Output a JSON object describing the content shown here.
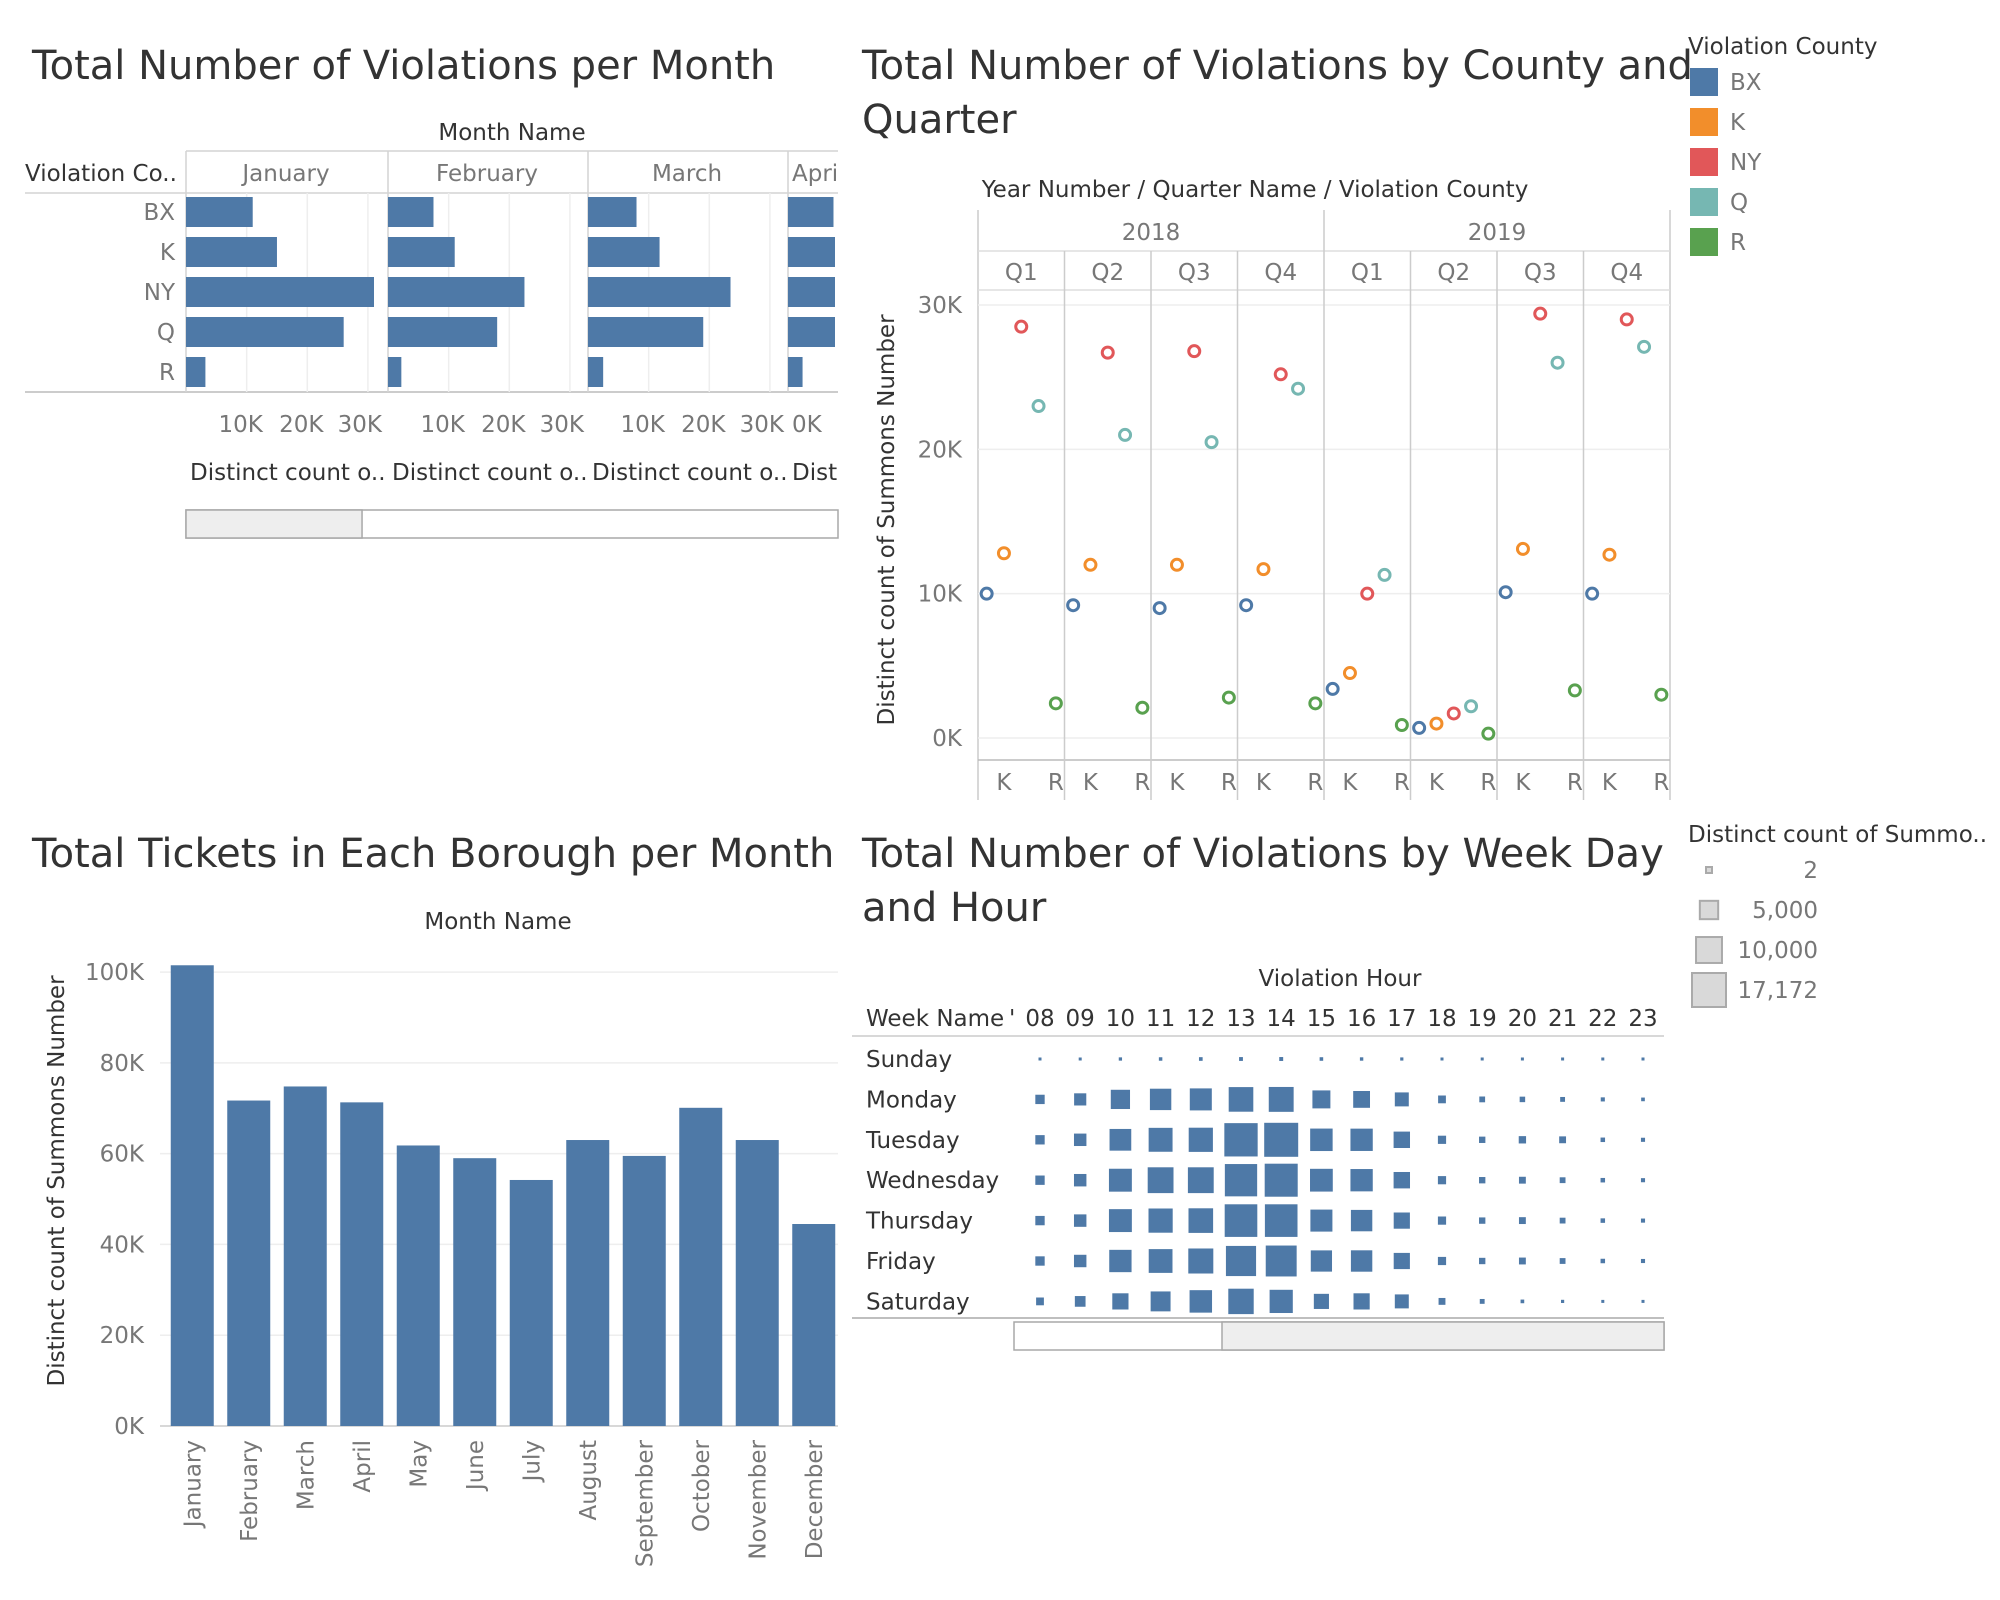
{
  "colors": {
    "bar": "#4e79a7",
    "BX": "#4e79a7",
    "K": "#f28e2b",
    "NY": "#e15759",
    "Q": "#76b7b2",
    "R": "#59a14f",
    "square_legend_fill": "#d9d9d9",
    "square_legend_stroke": "#aaaaaa"
  },
  "panel1": {
    "title": "Total Number of Violations per Month",
    "column_header": "Month Name",
    "row_header": "Violation Co..",
    "months_visible": [
      "January",
      "February",
      "March",
      "Apri"
    ],
    "measure_label": "Distinct count o..",
    "measure_label_cut": "Dist",
    "scroll_thumb_fraction": [
      0.0,
      0.27
    ],
    "chart_data": {
      "type": "bar",
      "orientation": "horizontal",
      "categories": [
        "BX",
        "K",
        "NY",
        "Q",
        "R"
      ],
      "x_ticks": [
        "10K",
        "20K",
        "30K"
      ],
      "x_ticks_last": [
        "0K"
      ],
      "xlim": [
        0,
        31000
      ],
      "series": [
        {
          "name": "January",
          "values": [
            11000,
            15000,
            31000,
            26000,
            3200
          ]
        },
        {
          "name": "February",
          "values": [
            7500,
            11000,
            22500,
            18000,
            2200
          ]
        },
        {
          "name": "March",
          "values": [
            8000,
            11800,
            23500,
            19000,
            2500
          ]
        },
        {
          "name": "Apri",
          "values": [
            7500,
            11000,
            22500,
            18000,
            2400
          ]
        }
      ]
    }
  },
  "panel2": {
    "title": "Total Number of Violations by County and Quarter",
    "column_header": "Year Number / Quarter Name / Violation County",
    "y_axis_label": "Distinct count of Summons Number",
    "legend_title": "Violation County",
    "chart_data": {
      "type": "scatter",
      "years": [
        "2018",
        "2019"
      ],
      "quarters": [
        "Q1",
        "Q2",
        "Q3",
        "Q4"
      ],
      "counties": [
        "BX",
        "K",
        "NY",
        "Q",
        "R"
      ],
      "axis_labels_visible": [
        "K",
        "R"
      ],
      "y_ticks": [
        "0K",
        "10K",
        "20K",
        "30K"
      ],
      "ylim": [
        0,
        32000
      ],
      "series": [
        {
          "name": "BX",
          "values": [
            10000,
            9200,
            9000,
            9200,
            3400,
            700,
            10100,
            10000
          ]
        },
        {
          "name": "K",
          "values": [
            12800,
            12000,
            12000,
            11700,
            4500,
            1000,
            13100,
            12700
          ]
        },
        {
          "name": "NY",
          "values": [
            28500,
            26700,
            26800,
            25200,
            10000,
            1700,
            29400,
            29000
          ]
        },
        {
          "name": "Q",
          "values": [
            23000,
            21000,
            20500,
            24200,
            11300,
            2200,
            26000,
            27100
          ]
        },
        {
          "name": "R",
          "values": [
            2400,
            2100,
            2800,
            2400,
            900,
            300,
            3300,
            3000
          ]
        }
      ]
    }
  },
  "panel3": {
    "title": "Total Tickets in Each Borough per Month",
    "column_header": "Month Name",
    "y_axis_label": "Distinct count of Summons Number",
    "chart_data": {
      "type": "bar",
      "categories": [
        "January",
        "February",
        "March",
        "April",
        "May",
        "June",
        "July",
        "August",
        "September",
        "October",
        "November",
        "December"
      ],
      "values": [
        101500,
        71700,
        74800,
        71300,
        61800,
        59000,
        54200,
        63000,
        59500,
        70100,
        63000,
        44500
      ],
      "y_ticks": [
        "0K",
        "20K",
        "40K",
        "60K",
        "80K",
        "100K"
      ],
      "ylim": [
        0,
        102000
      ]
    }
  },
  "panel4": {
    "title": "Total Number of Violations by Week Day and Hour",
    "column_header": "Violation Hour",
    "row_header": "Week Name",
    "row_header_mark": "'",
    "legend_title": "Distinct count of Summo..",
    "legend_items": [
      {
        "label": "2",
        "value": 2
      },
      {
        "label": "5,000",
        "value": 5000
      },
      {
        "label": "10,000",
        "value": 10000
      },
      {
        "label": "17,172",
        "value": 17172
      }
    ],
    "scroll_thumb_fraction": [
      0.32,
      1.0
    ],
    "chart_data": {
      "type": "heatmap",
      "mark": "square-size",
      "size_max": 17172,
      "hours": [
        "08",
        "09",
        "10",
        "11",
        "12",
        "13",
        "14",
        "15",
        "16",
        "17",
        "18",
        "19",
        "20",
        "21",
        "22",
        "23"
      ],
      "days": [
        "Sunday",
        "Monday",
        "Tuesday",
        "Wednesday",
        "Thursday",
        "Friday",
        "Saturday"
      ],
      "values": [
        [
          120,
          130,
          160,
          180,
          200,
          220,
          230,
          190,
          170,
          150,
          120,
          110,
          100,
          90,
          80,
          70
        ],
        [
          1300,
          2200,
          5500,
          6800,
          7200,
          9000,
          9200,
          4800,
          4200,
          2900,
          900,
          500,
          450,
          350,
          250,
          200
        ],
        [
          1300,
          2300,
          7000,
          8500,
          8700,
          16500,
          17172,
          7500,
          7400,
          4000,
          1000,
          600,
          800,
          700,
          300,
          250
        ],
        [
          1300,
          2300,
          7800,
          9900,
          9900,
          15500,
          16200,
          7700,
          7400,
          4000,
          1000,
          600,
          700,
          500,
          300,
          250
        ],
        [
          1300,
          2300,
          7800,
          8700,
          9000,
          15800,
          15800,
          7200,
          6800,
          3900,
          1000,
          600,
          700,
          500,
          300,
          250
        ],
        [
          1300,
          2300,
          7400,
          8400,
          9300,
          13500,
          14200,
          6700,
          6800,
          3900,
          1000,
          600,
          700,
          500,
          300,
          250
        ],
        [
          900,
          1700,
          3900,
          5900,
          7500,
          9600,
          8000,
          3400,
          3900,
          2900,
          700,
          350,
          200,
          150,
          120,
          100
        ]
      ]
    }
  }
}
